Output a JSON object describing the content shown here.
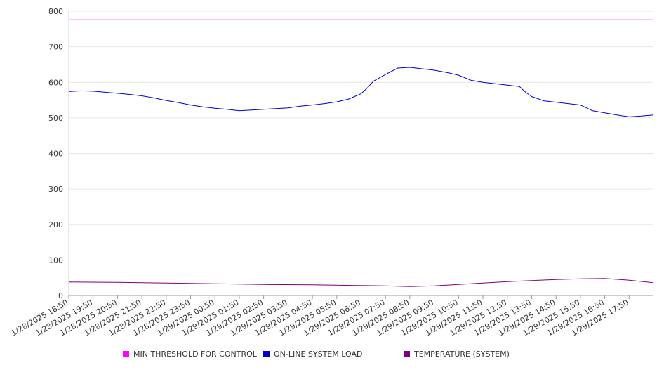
{
  "chart_data": {
    "type": "line",
    "title": "",
    "xlabel": "",
    "ylabel": "",
    "ylim": [
      0,
      800
    ],
    "yticks": [
      0,
      100,
      200,
      300,
      400,
      500,
      600,
      700,
      800
    ],
    "grid": true,
    "legend_position": "bottom",
    "x_tick_labels": [
      "1/28/2025 18:50",
      "1/28/2025 19:50",
      "1/28/2025 20:50",
      "1/28/2025 21:50",
      "1/28/2025 22:50",
      "1/28/2025 23:50",
      "1/29/2025 00:50",
      "1/29/2025 01:50",
      "1/29/2025 02:50",
      "1/29/2025 03:50",
      "1/29/2025 04:50",
      "1/29/2025 05:50",
      "1/29/2025 06:50",
      "1/29/2025 07:50",
      "1/29/2025 08:50",
      "1/29/2025 09:50",
      "1/29/2025 10:50",
      "1/29/2025 11:50",
      "1/29/2025 12:50",
      "1/29/2025 13:50",
      "1/29/2025 14:50",
      "1/29/2025 15:50",
      "1/29/2025 16:50",
      "1/29/2025 17:50"
    ],
    "x_start": "1/28/2025 18:50",
    "x_end": "1/29/2025 18:50",
    "series": [
      {
        "name": "MIN THRESHOLD FOR CONTROL",
        "color": "#ff00ff",
        "x": [
          "1/28/2025 18:50",
          "1/29/2025 18:50"
        ],
        "values": [
          776,
          776
        ]
      },
      {
        "name": "ON-LINE SYSTEM LOAD",
        "color": "#0000cc",
        "x": [
          "1/28/2025 18:50",
          "1/28/2025 19:20",
          "1/28/2025 19:50",
          "1/28/2025 20:20",
          "1/28/2025 20:50",
          "1/28/2025 21:20",
          "1/28/2025 21:50",
          "1/28/2025 22:20",
          "1/28/2025 22:50",
          "1/28/2025 23:20",
          "1/28/2025 23:50",
          "1/29/2025 00:20",
          "1/29/2025 00:50",
          "1/29/2025 01:20",
          "1/29/2025 01:50",
          "1/29/2025 02:20",
          "1/29/2025 02:50",
          "1/29/2025 03:20",
          "1/29/2025 03:50",
          "1/29/2025 04:20",
          "1/29/2025 04:50",
          "1/29/2025 05:20",
          "1/29/2025 05:50",
          "1/29/2025 06:20",
          "1/29/2025 06:50",
          "1/29/2025 07:05",
          "1/29/2025 07:20",
          "1/29/2025 07:50",
          "1/29/2025 08:20",
          "1/29/2025 08:50",
          "1/29/2025 09:20",
          "1/29/2025 09:50",
          "1/29/2025 10:20",
          "1/29/2025 10:50",
          "1/29/2025 11:20",
          "1/29/2025 11:50",
          "1/29/2025 12:20",
          "1/29/2025 12:50",
          "1/29/2025 13:20",
          "1/29/2025 13:35",
          "1/29/2025 13:50",
          "1/29/2025 14:20",
          "1/29/2025 14:50",
          "1/29/2025 15:20",
          "1/29/2025 15:50",
          "1/29/2025 16:20",
          "1/29/2025 16:50",
          "1/29/2025 17:20",
          "1/29/2025 17:50",
          "1/29/2025 18:20",
          "1/29/2025 18:50"
        ],
        "values": [
          574,
          576,
          575,
          572,
          569,
          566,
          562,
          556,
          549,
          543,
          536,
          531,
          527,
          524,
          520,
          522,
          524,
          526,
          528,
          533,
          536,
          540,
          545,
          553,
          568,
          584,
          603,
          622,
          640,
          642,
          638,
          634,
          628,
          620,
          606,
          600,
          596,
          592,
          588,
          572,
          560,
          548,
          544,
          540,
          536,
          520,
          514,
          508,
          503,
          505,
          508
        ]
      },
      {
        "name": "TEMPERATURE (SYSTEM)",
        "color": "#800080",
        "x": [
          "1/28/2025 18:50",
          "1/28/2025 20:50",
          "1/28/2025 22:50",
          "1/29/2025 00:50",
          "1/29/2025 02:50",
          "1/29/2025 04:50",
          "1/29/2025 06:50",
          "1/29/2025 07:50",
          "1/29/2025 08:50",
          "1/29/2025 09:50",
          "1/29/2025 10:50",
          "1/29/2025 11:50",
          "1/29/2025 12:50",
          "1/29/2025 13:50",
          "1/29/2025 14:50",
          "1/29/2025 15:50",
          "1/29/2025 16:50",
          "1/29/2025 17:50",
          "1/29/2025 18:50"
        ],
        "values": [
          38,
          37,
          35,
          33,
          31,
          30,
          28,
          27,
          25,
          27,
          31,
          35,
          39,
          42,
          45,
          47,
          48,
          43,
          36
        ]
      }
    ]
  }
}
